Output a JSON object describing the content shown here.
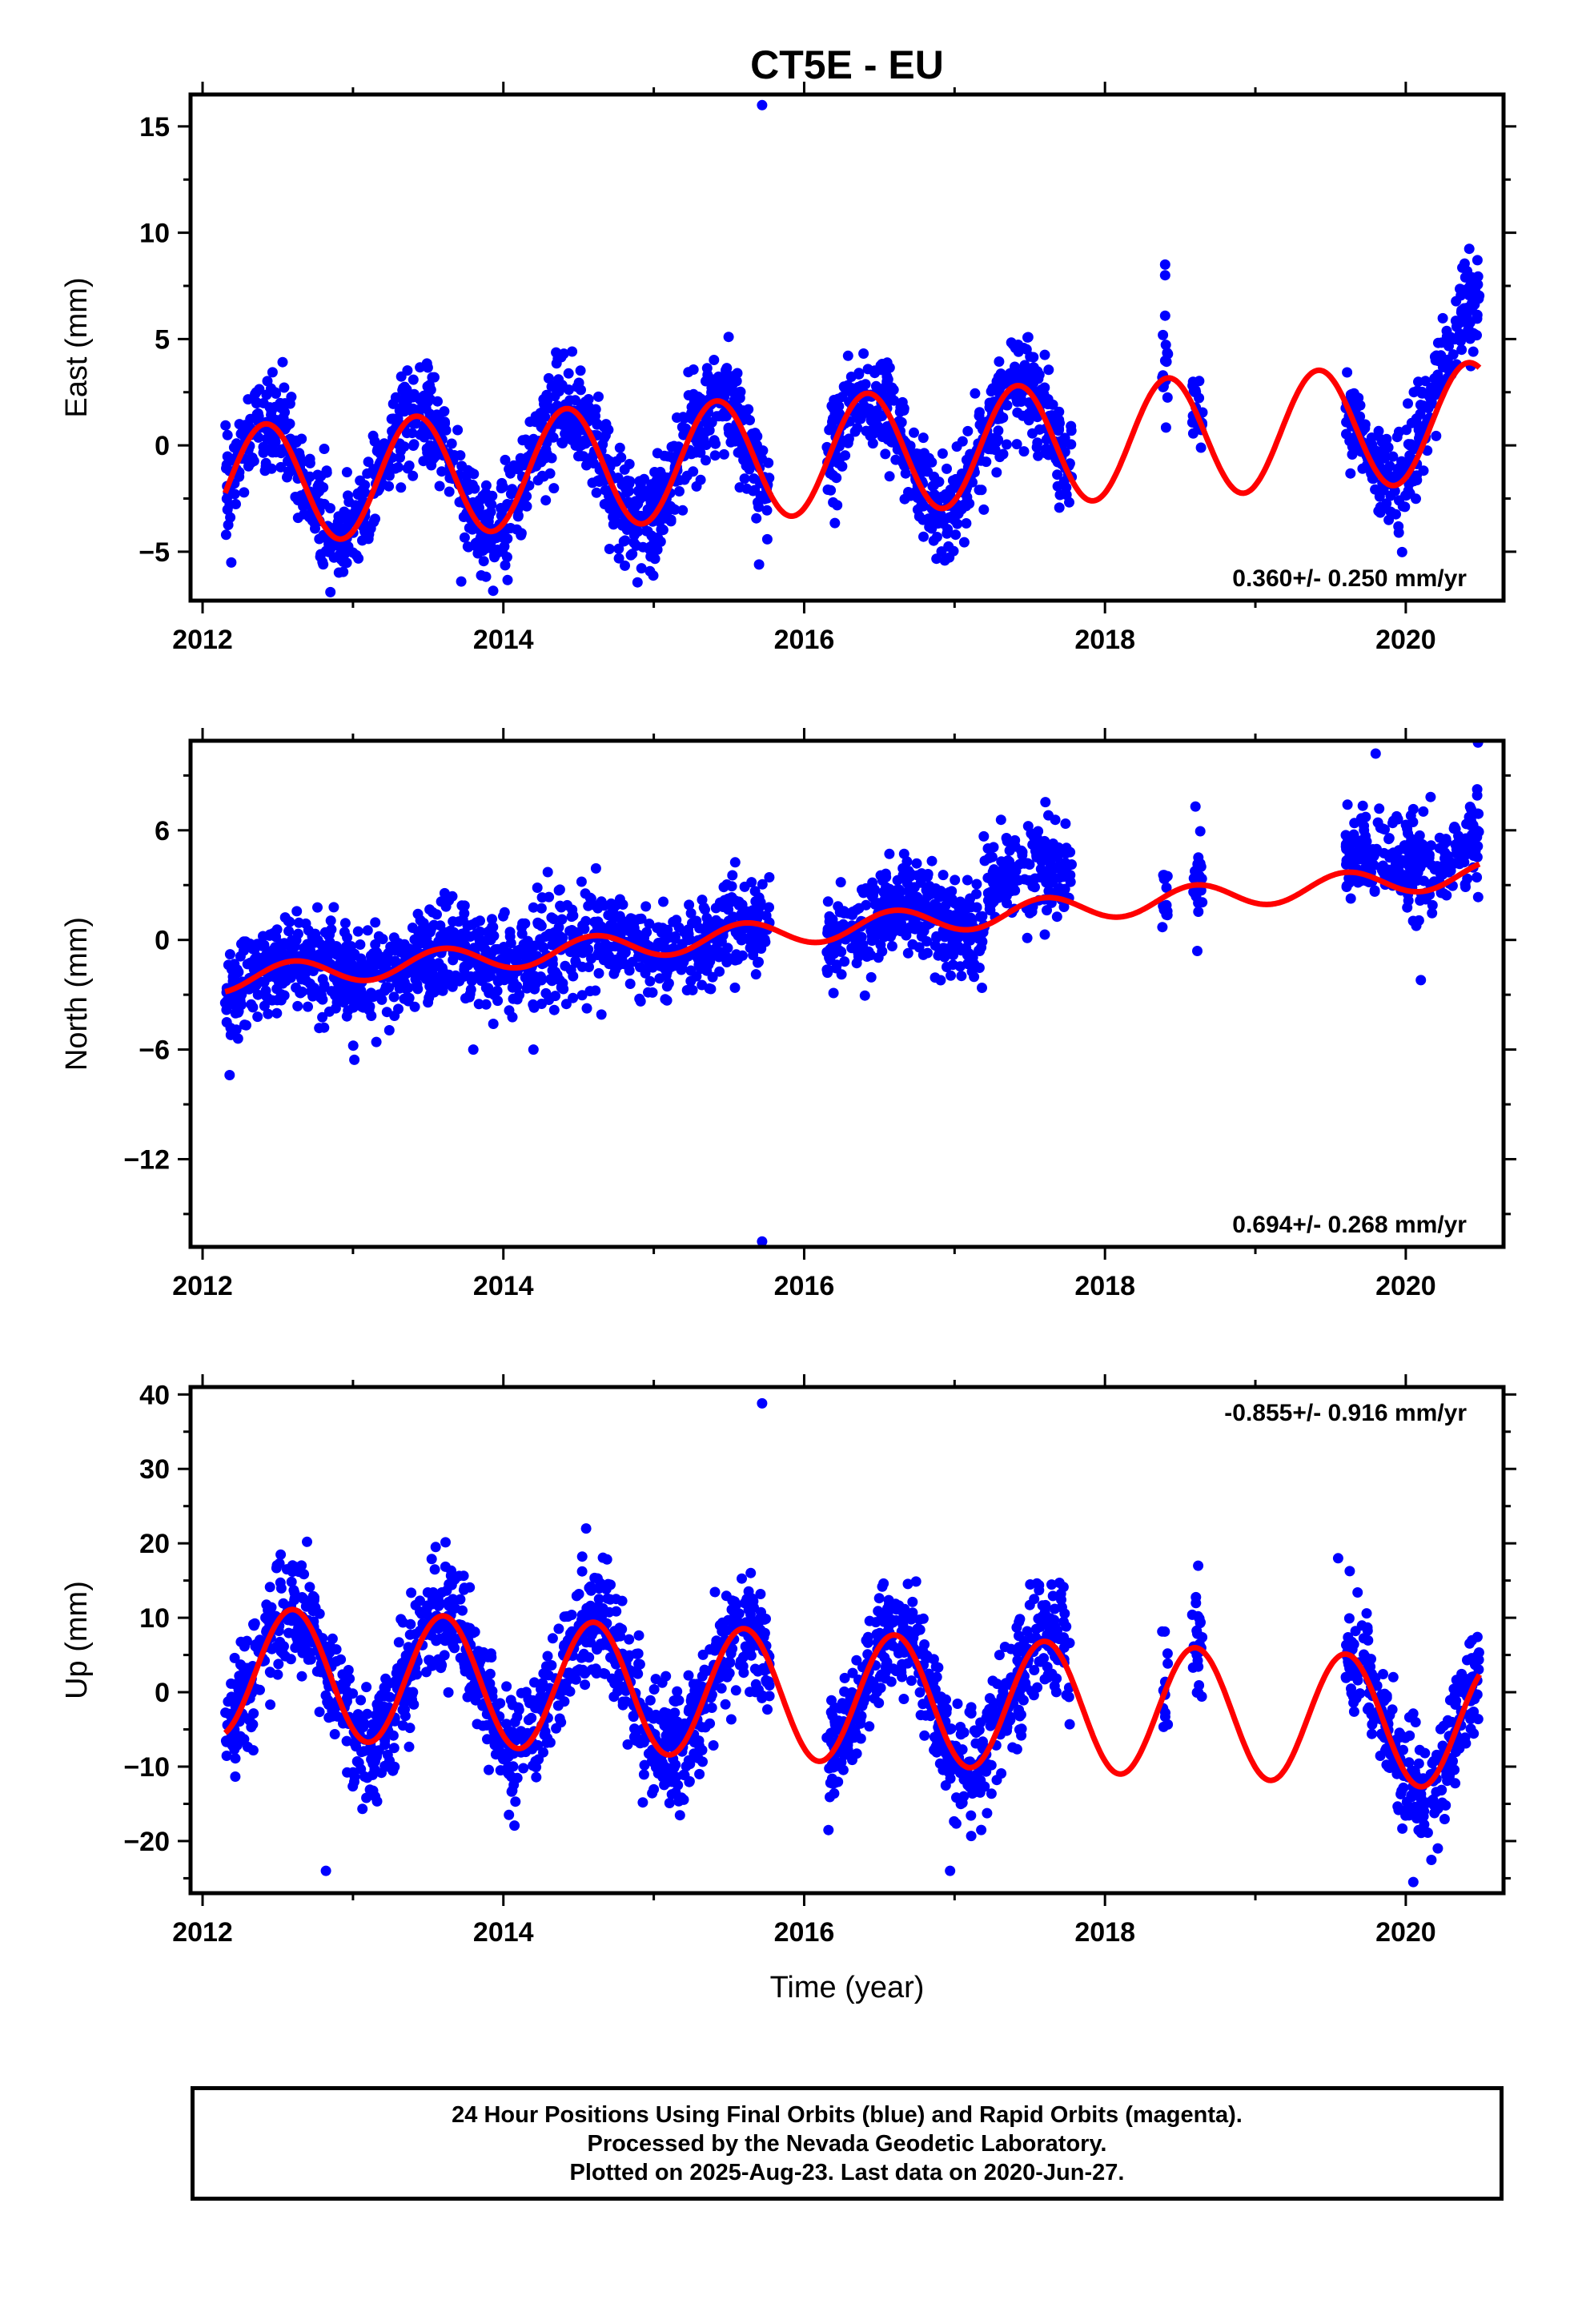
{
  "title": "CT5E - EU",
  "chart_data": [
    {
      "type": "scatter",
      "component": "east",
      "ylabel": "East (mm)",
      "xlabel": "",
      "xlim": [
        2011.92,
        2020.65
      ],
      "ylim": [
        -7.3,
        16.5
      ],
      "xticks": [
        2012,
        2014,
        2016,
        2018,
        2020
      ],
      "yticks": [
        -5,
        0,
        5,
        10,
        15
      ],
      "rate_text": "0.360+/- 0.250 mm/yr",
      "rate_position": "bottom-right",
      "data_color": "#0000ff",
      "model_color": "#ff0000",
      "model": {
        "offset": -0.5,
        "rate": 0.36,
        "amplitude": 2.8,
        "phase_peak": 0.42,
        "t0": 2016.0
      },
      "outliers": [
        [
          2015.72,
          16.0
        ],
        [
          2018.4,
          8.5
        ],
        [
          2018.4,
          8.0
        ],
        [
          2018.4,
          6.1
        ],
        [
          2015.7,
          -5.6
        ],
        [
          2012.85,
          -6.9
        ],
        [
          2013.72,
          -6.4
        ]
      ],
      "data_segments": [
        [
          2012.15,
          2015.77
        ],
        [
          2016.15,
          2017.78
        ],
        [
          2018.38,
          2018.42
        ],
        [
          2018.58,
          2018.65
        ],
        [
          2019.6,
          2020.49
        ]
      ]
    },
    {
      "type": "scatter",
      "component": "north",
      "ylabel": "North (mm)",
      "xlabel": "",
      "xlim": [
        2011.92,
        2020.65
      ],
      "ylim": [
        -16.8,
        10.9
      ],
      "xticks": [
        2012,
        2014,
        2016,
        2018,
        2020
      ],
      "yticks": [
        -12,
        -6,
        0,
        6
      ],
      "rate_text": "0.694+/- 0.268 mm/yr",
      "rate_position": "bottom-right",
      "data_color": "#0000ff",
      "model_color": "#ff0000",
      "model": {
        "offset": 0.5,
        "rate": 0.694,
        "amplitude": 0.7,
        "phase_peak": 0.6,
        "t0": 2016.0
      },
      "outliers": [
        [
          2015.72,
          -16.5
        ],
        [
          2012.18,
          -7.4
        ],
        [
          2013.8,
          -6.0
        ],
        [
          2014.2,
          -6.0
        ],
        [
          2020.1,
          -2.2
        ],
        [
          2020.48,
          10.8
        ],
        [
          2019.8,
          10.2
        ]
      ],
      "data_segments": [
        [
          2012.15,
          2015.77
        ],
        [
          2016.15,
          2017.78
        ],
        [
          2018.38,
          2018.42
        ],
        [
          2018.58,
          2018.65
        ],
        [
          2019.6,
          2020.49
        ]
      ]
    },
    {
      "type": "scatter",
      "component": "up",
      "ylabel": "Up (mm)",
      "xlabel": "Time (year)",
      "xlim": [
        2011.92,
        2020.65
      ],
      "ylim": [
        -27.0,
        41.0
      ],
      "xticks": [
        2012,
        2014,
        2016,
        2018,
        2020
      ],
      "yticks": [
        -20,
        -10,
        0,
        10,
        20,
        30,
        40
      ],
      "rate_text": "-0.855+/- 0.916 mm/yr",
      "rate_position": "top-right",
      "data_color": "#0000ff",
      "model_color": "#ff0000",
      "model": {
        "offset": -0.5,
        "rate": -0.855,
        "amplitude": 8.7,
        "phase_peak": 0.6,
        "t0": 2016.0
      },
      "outliers": [
        [
          2015.72,
          38.8
        ],
        [
          2012.82,
          -24.0
        ],
        [
          2016.97,
          -24.0
        ],
        [
          2020.05,
          -25.5
        ],
        [
          2019.55,
          18.0
        ],
        [
          2018.62,
          17.0
        ],
        [
          2013.55,
          19.5
        ],
        [
          2014.55,
          22.0
        ]
      ],
      "data_segments": [
        [
          2012.15,
          2015.77
        ],
        [
          2016.15,
          2017.78
        ],
        [
          2018.38,
          2018.42
        ],
        [
          2018.58,
          2018.65
        ],
        [
          2019.6,
          2020.49
        ]
      ]
    }
  ],
  "footer": {
    "line1": "24 Hour Positions Using Final Orbits (blue) and Rapid Orbits (magenta).",
    "line2": "Processed by the Nevada Geodetic Laboratory.",
    "line3": "Plotted on 2025-Aug-23. Last data on 2020-Jun-27."
  }
}
